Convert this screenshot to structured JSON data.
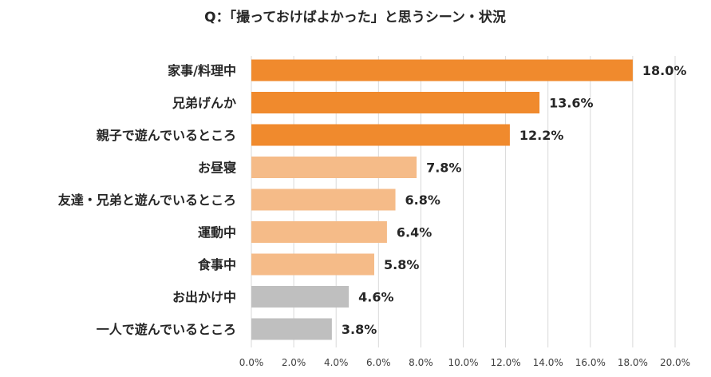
{
  "chart_data": {
    "type": "bar",
    "orientation": "horizontal",
    "title": "Q：「撮っておけばよかった」と思うシーン・状況",
    "xlabel": "",
    "ylabel": "",
    "xlim": [
      0,
      20
    ],
    "grid": true,
    "legend": "none",
    "categories": [
      "家事/料理中",
      "兄弟げんか",
      "親子で遊んでいるところ",
      "お昼寝",
      "友達・兄弟と遊んでいるところ",
      "運動中",
      "食事中",
      "お出かけ中",
      "一人で遊んでいるところ"
    ],
    "values": [
      18.0,
      13.6,
      12.2,
      7.8,
      6.8,
      6.4,
      5.8,
      4.6,
      3.8
    ],
    "value_labels": [
      "18.0%",
      "13.6%",
      "12.2%",
      "7.8%",
      "6.8%",
      "6.4%",
      "5.8%",
      "4.6%",
      "3.8%"
    ],
    "tick_labels": [
      "0.0%",
      "2.0%",
      "4.0%",
      "6.0%",
      "8.0%",
      "10.0%",
      "12.0%",
      "14.0%",
      "16.0%",
      "18.0%",
      "20.0%"
    ],
    "tick_values": [
      0,
      2,
      4,
      6,
      8,
      10,
      12,
      14,
      16,
      18,
      20
    ],
    "bar_colors": [
      "#f08a2d",
      "#f08a2d",
      "#f08a2d",
      "#f5bb88",
      "#f5bb88",
      "#f5bb88",
      "#f5bb88",
      "#bfbfbf",
      "#bfbfbf"
    ]
  }
}
